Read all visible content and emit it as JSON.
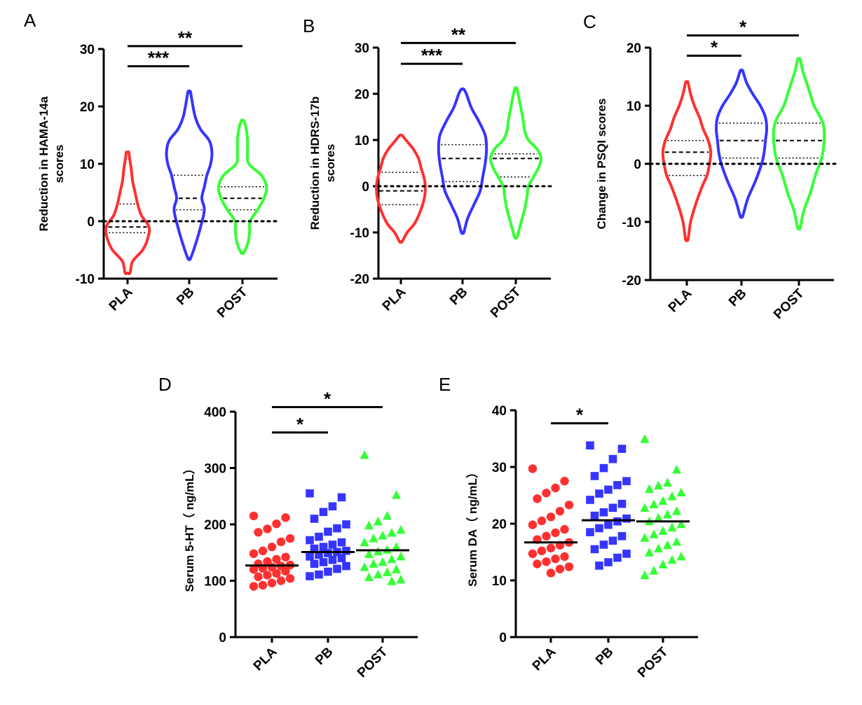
{
  "figure": {
    "colors": {
      "PLA": "#ff3030",
      "PB": "#3535ff",
      "POST": "#35ff35",
      "ink": "#000000"
    },
    "group_markers": {
      "PLA": "circle",
      "PB": "square",
      "POST": "triangle"
    }
  },
  "chart_data": [
    {
      "panel": "A",
      "type": "violin",
      "categories": [
        "PLA",
        "PB",
        "POST"
      ],
      "ylabel_lines": [
        "Reduction in  HAMA-14a",
        "scores"
      ],
      "ylim": [
        -10,
        30
      ],
      "yticks": [
        -10,
        0,
        10,
        20,
        30
      ],
      "reference_line": 0,
      "series": [
        {
          "name": "PLA",
          "range": [
            -9,
            12
          ],
          "median": -1,
          "q1": -2,
          "q3": 3,
          "profile": [
            [
              -9,
              0.1
            ],
            [
              -7,
              0.2
            ],
            [
              -5,
              0.6
            ],
            [
              -3,
              0.8
            ],
            [
              -1,
              0.85
            ],
            [
              1,
              0.55
            ],
            [
              3,
              0.4
            ],
            [
              5,
              0.3
            ],
            [
              7,
              0.2
            ],
            [
              9,
              0.15
            ],
            [
              11,
              0.08
            ],
            [
              12,
              0.05
            ]
          ]
        },
        {
          "name": "PB",
          "range": [
            -6.5,
            22.5
          ],
          "median": 4,
          "q1": 2,
          "q3": 8,
          "profile": [
            [
              -6.5,
              0.05
            ],
            [
              -4,
              0.25
            ],
            [
              -1,
              0.45
            ],
            [
              2,
              0.6
            ],
            [
              4,
              0.5
            ],
            [
              6,
              0.6
            ],
            [
              8,
              0.7
            ],
            [
              10,
              0.85
            ],
            [
              12,
              0.9
            ],
            [
              14,
              0.8
            ],
            [
              16,
              0.45
            ],
            [
              18,
              0.25
            ],
            [
              20,
              0.15
            ],
            [
              22.5,
              0.05
            ]
          ]
        },
        {
          "name": "POST",
          "range": [
            -5.5,
            17.5
          ],
          "median": 4,
          "q1": 2,
          "q3": 6,
          "profile": [
            [
              -5.5,
              0.05
            ],
            [
              -4,
              0.2
            ],
            [
              -2,
              0.28
            ],
            [
              0,
              0.3
            ],
            [
              2,
              0.6
            ],
            [
              4,
              0.85
            ],
            [
              6,
              0.95
            ],
            [
              8,
              0.75
            ],
            [
              10,
              0.25
            ],
            [
              12,
              0.2
            ],
            [
              14,
              0.2
            ],
            [
              16,
              0.15
            ],
            [
              17.5,
              0.05
            ]
          ]
        }
      ],
      "comparisons": [
        {
          "from": "PLA",
          "to": "PB",
          "label": "***",
          "y": 27
        },
        {
          "from": "PLA",
          "to": "POST",
          "label": "**",
          "y": 30.5
        }
      ]
    },
    {
      "panel": "B",
      "type": "violin",
      "categories": [
        "PLA",
        "PB",
        "POST"
      ],
      "ylabel_lines": [
        "Reduction in  HDRS-17b",
        "scores"
      ],
      "ylim": [
        -20,
        30
      ],
      "yticks": [
        -20,
        -10,
        0,
        10,
        20,
        30
      ],
      "reference_line": 0,
      "series": [
        {
          "name": "PLA",
          "range": [
            -12,
            11
          ],
          "median": -1,
          "q1": -4,
          "q3": 3,
          "profile": [
            [
              -12,
              0.05
            ],
            [
              -10,
              0.25
            ],
            [
              -8,
              0.55
            ],
            [
              -5,
              0.8
            ],
            [
              -2,
              0.95
            ],
            [
              1,
              0.95
            ],
            [
              4,
              0.8
            ],
            [
              6,
              0.7
            ],
            [
              8,
              0.5
            ],
            [
              10,
              0.2
            ],
            [
              11,
              0.05
            ]
          ]
        },
        {
          "name": "PB",
          "range": [
            -10,
            21
          ],
          "median": 6,
          "q1": 1,
          "q3": 9,
          "profile": [
            [
              -10,
              0.05
            ],
            [
              -7,
              0.2
            ],
            [
              -4,
              0.45
            ],
            [
              -1,
              0.7
            ],
            [
              2,
              0.8
            ],
            [
              5,
              0.9
            ],
            [
              8,
              0.95
            ],
            [
              11,
              0.9
            ],
            [
              14,
              0.65
            ],
            [
              17,
              0.35
            ],
            [
              20,
              0.15
            ],
            [
              21,
              0.05
            ]
          ]
        },
        {
          "name": "POST",
          "range": [
            -11,
            21
          ],
          "median": 6,
          "q1": 2,
          "q3": 7,
          "profile": [
            [
              -11,
              0.05
            ],
            [
              -8,
              0.2
            ],
            [
              -5,
              0.35
            ],
            [
              -2,
              0.45
            ],
            [
              0,
              0.5
            ],
            [
              2,
              0.7
            ],
            [
              4,
              0.9
            ],
            [
              6,
              1.0
            ],
            [
              8,
              0.85
            ],
            [
              10,
              0.5
            ],
            [
              12,
              0.35
            ],
            [
              14,
              0.3
            ],
            [
              17,
              0.2
            ],
            [
              21,
              0.05
            ]
          ]
        }
      ],
      "comparisons": [
        {
          "from": "PLA",
          "to": "PB",
          "label": "***",
          "y": 26.5
        },
        {
          "from": "PLA",
          "to": "POST",
          "label": "**",
          "y": 31
        }
      ]
    },
    {
      "panel": "C",
      "type": "violin",
      "categories": [
        "PLA",
        "PB",
        "POST"
      ],
      "ylabel_lines": [
        "Change in PSQI scores"
      ],
      "ylim": [
        -20,
        20
      ],
      "yticks": [
        -20,
        -10,
        0,
        10,
        20
      ],
      "reference_line": 0,
      "series": [
        {
          "name": "PLA",
          "range": [
            -13,
            14
          ],
          "median": 2,
          "q1": -2,
          "q3": 4,
          "profile": [
            [
              -13,
              0.05
            ],
            [
              -10,
              0.15
            ],
            [
              -7,
              0.35
            ],
            [
              -4,
              0.6
            ],
            [
              -2,
              0.8
            ],
            [
              0,
              0.9
            ],
            [
              2,
              0.95
            ],
            [
              4,
              0.85
            ],
            [
              6,
              0.65
            ],
            [
              8,
              0.5
            ],
            [
              10,
              0.3
            ],
            [
              12,
              0.15
            ],
            [
              14,
              0.05
            ]
          ]
        },
        {
          "name": "PB",
          "range": [
            -9,
            16
          ],
          "median": 4,
          "q1": 1,
          "q3": 7,
          "profile": [
            [
              -9,
              0.05
            ],
            [
              -6,
              0.25
            ],
            [
              -3,
              0.55
            ],
            [
              0,
              0.8
            ],
            [
              2,
              0.9
            ],
            [
              4,
              0.95
            ],
            [
              6,
              1.0
            ],
            [
              8,
              0.95
            ],
            [
              10,
              0.75
            ],
            [
              12,
              0.45
            ],
            [
              14,
              0.2
            ],
            [
              16,
              0.05
            ]
          ]
        },
        {
          "name": "POST",
          "range": [
            -11,
            18
          ],
          "median": 4,
          "q1": 1,
          "q3": 7,
          "profile": [
            [
              -11,
              0.05
            ],
            [
              -8,
              0.2
            ],
            [
              -5,
              0.45
            ],
            [
              -2,
              0.65
            ],
            [
              1,
              0.9
            ],
            [
              4,
              1.0
            ],
            [
              7,
              0.95
            ],
            [
              10,
              0.6
            ],
            [
              12,
              0.45
            ],
            [
              14,
              0.3
            ],
            [
              16,
              0.15
            ],
            [
              18,
              0.05
            ]
          ]
        }
      ],
      "comparisons": [
        {
          "from": "PLA",
          "to": "PB",
          "label": "*",
          "y": 18.6
        },
        {
          "from": "PLA",
          "to": "POST",
          "label": "*",
          "y": 22.1
        }
      ]
    },
    {
      "panel": "D",
      "type": "scatter",
      "categories": [
        "PLA",
        "PB",
        "POST"
      ],
      "ylabel": "Serum 5-HT（ ng/mL）",
      "ylim": [
        0,
        400
      ],
      "yticks": [
        0,
        100,
        200,
        300,
        400
      ],
      "series": [
        {
          "name": "PLA",
          "marker": "circle",
          "mean": 127,
          "values": [
            215,
            212,
            201,
            192,
            186,
            175,
            169,
            160,
            153,
            148,
            142,
            138,
            134,
            130,
            128,
            126,
            124,
            122,
            120,
            117,
            113,
            110,
            107,
            104,
            100,
            96,
            92,
            90
          ]
        },
        {
          "name": "PB",
          "marker": "square",
          "mean": 151,
          "values": [
            255,
            248,
            232,
            222,
            210,
            200,
            193,
            187,
            178,
            172,
            168,
            164,
            160,
            157,
            153,
            151,
            149,
            146,
            143,
            140,
            137,
            133,
            130,
            126,
            121,
            116,
            111,
            108
          ]
        },
        {
          "name": "POST",
          "marker": "triangle",
          "mean": 154,
          "values": [
            323,
            252,
            215,
            205,
            198,
            190,
            185,
            180,
            175,
            168,
            160,
            155,
            152,
            147,
            143,
            138,
            133,
            130,
            124,
            120,
            115,
            111,
            106,
            102,
            99
          ]
        }
      ],
      "comparisons": [
        {
          "from": "PLA",
          "to": "PB",
          "label": "*",
          "y": 363
        },
        {
          "from": "PLA",
          "to": "POST",
          "label": "*",
          "y": 408
        }
      ]
    },
    {
      "panel": "E",
      "type": "scatter",
      "categories": [
        "PLA",
        "PB",
        "POST"
      ],
      "ylabel": "Serum DA（ ng/mL）",
      "ylim": [
        0,
        40
      ],
      "yticks": [
        0,
        10,
        20,
        30,
        40
      ],
      "series": [
        {
          "name": "PLA",
          "marker": "circle",
          "mean": 16.7,
          "values": [
            29.7,
            27.5,
            26.3,
            25.4,
            24.4,
            23.3,
            22.2,
            21.2,
            20.5,
            19.8,
            19.0,
            18.4,
            17.8,
            17.2,
            16.7,
            16.2,
            15.7,
            15.2,
            14.7,
            14.2,
            13.8,
            13.3,
            12.9,
            12.4,
            12.0,
            11.3
          ]
        },
        {
          "name": "PB",
          "marker": "square",
          "mean": 20.6,
          "values": [
            33.8,
            33.2,
            31.4,
            29.8,
            28.4,
            27.5,
            26.8,
            26.0,
            25.3,
            24.2,
            23.5,
            22.8,
            22.0,
            21.4,
            20.9,
            20.4,
            19.8,
            19.2,
            18.5,
            17.8,
            17.0,
            16.3,
            15.5,
            14.7,
            14.0,
            13.2,
            12.6
          ]
        },
        {
          "name": "POST",
          "marker": "triangle",
          "mean": 20.4,
          "values": [
            34.9,
            29.5,
            27.2,
            26.7,
            26.1,
            25.5,
            24.8,
            24.0,
            23.4,
            22.8,
            22.2,
            21.6,
            21.0,
            20.4,
            19.9,
            19.3,
            18.7,
            18.1,
            17.5,
            16.8,
            16.2,
            15.6,
            14.9,
            14.2,
            13.6,
            12.8,
            11.7,
            10.9
          ]
        }
      ],
      "comparisons": [
        {
          "from": "PLA",
          "to": "PB",
          "label": "*",
          "y": 37.7
        }
      ]
    }
  ]
}
